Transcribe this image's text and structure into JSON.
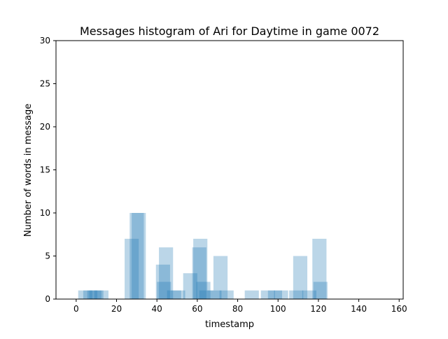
{
  "chart_data": {
    "type": "bar",
    "title": "Messages histogram of Ari for Daytime in game 0072",
    "xlabel": "timestamp",
    "ylabel": "Number of words in message",
    "xlim": [
      -10,
      162
    ],
    "ylim": [
      0,
      30
    ],
    "xticks": [
      0,
      20,
      40,
      60,
      80,
      100,
      120,
      140,
      160
    ],
    "yticks": [
      0,
      5,
      10,
      15,
      20,
      25,
      30
    ],
    "grid": false,
    "bar_width": 7,
    "bar_color": "#1f77b4",
    "bar_opacity": 0.3,
    "messages": [
      {
        "x": 4.5,
        "y": 1
      },
      {
        "x": 7,
        "y": 1
      },
      {
        "x": 9,
        "y": 1
      },
      {
        "x": 10,
        "y": 1
      },
      {
        "x": 12.5,
        "y": 1
      },
      {
        "x": 27.5,
        "y": 7
      },
      {
        "x": 30,
        "y": 10
      },
      {
        "x": 31,
        "y": 10
      },
      {
        "x": 43,
        "y": 4
      },
      {
        "x": 43.5,
        "y": 2
      },
      {
        "x": 44.5,
        "y": 6
      },
      {
        "x": 48.5,
        "y": 1
      },
      {
        "x": 50.5,
        "y": 1
      },
      {
        "x": 56.5,
        "y": 3
      },
      {
        "x": 61.5,
        "y": 7
      },
      {
        "x": 61,
        "y": 6
      },
      {
        "x": 63,
        "y": 2
      },
      {
        "x": 64.5,
        "y": 1
      },
      {
        "x": 68.5,
        "y": 1
      },
      {
        "x": 71.5,
        "y": 5
      },
      {
        "x": 74.5,
        "y": 1
      },
      {
        "x": 87,
        "y": 1
      },
      {
        "x": 95,
        "y": 1
      },
      {
        "x": 98.5,
        "y": 1
      },
      {
        "x": 101.5,
        "y": 1
      },
      {
        "x": 109,
        "y": 1
      },
      {
        "x": 111,
        "y": 5
      },
      {
        "x": 115.5,
        "y": 1
      },
      {
        "x": 120.5,
        "y": 7
      },
      {
        "x": 121,
        "y": 2
      }
    ]
  }
}
